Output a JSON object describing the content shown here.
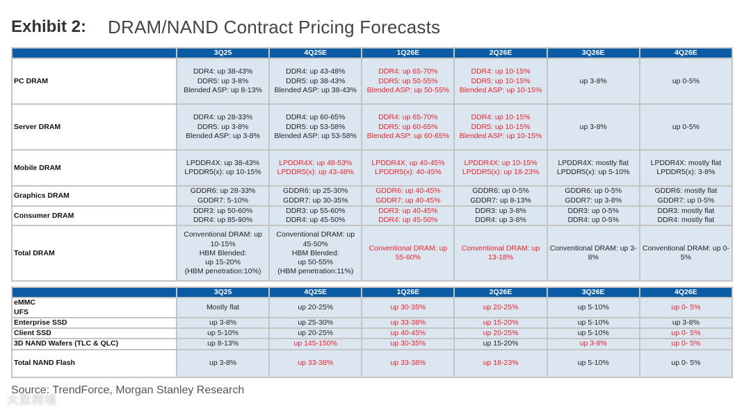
{
  "title": {
    "exhibit": "Exhibit 2:",
    "name": "DRAM/NAND Contract Pricing Forecasts"
  },
  "colors": {
    "header_bg": "#0b5ba5",
    "cell_bg": "#dce6f1",
    "highlight": "#e8232b"
  },
  "dram": {
    "columns": [
      "3Q25",
      "4Q25E",
      "1Q26E",
      "2Q26E",
      "3Q26E",
      "4Q26E"
    ],
    "rows": [
      {
        "label": "PC DRAM",
        "cells": [
          {
            "hl": false,
            "lines": [
              "DDR4: up 38-43%",
              "DDR5: up 3-8%",
              "Blended ASP: up 8-13%"
            ]
          },
          {
            "hl": false,
            "lines": [
              "DDR4: up 43-48%",
              "DDR5: up 38-43%",
              "Blended ASP: up 38-43%"
            ]
          },
          {
            "hl": true,
            "lines": [
              "DDR4: up 65-70%",
              "DDR5: up 50-55%",
              "Blended ASP: up 50-55%"
            ]
          },
          {
            "hl": true,
            "lines": [
              "DDR4: up 10-15%",
              "DDR5: up 10-15%",
              "Blended ASP: up 10-15%"
            ]
          },
          {
            "hl": false,
            "lines": [
              "up 3-8%"
            ]
          },
          {
            "hl": false,
            "lines": [
              "up 0-5%"
            ]
          }
        ]
      },
      {
        "label": "Server DRAM",
        "cells": [
          {
            "hl": false,
            "lines": [
              "DDR4: up 28-33%",
              "DDR5: up 3-8%",
              "Blended ASP: up 3-8%"
            ]
          },
          {
            "hl": false,
            "lines": [
              "DDR4: up 60-65%",
              "DDR5: up 53-58%",
              "Blended ASP: up 53-58%"
            ]
          },
          {
            "hl": true,
            "lines": [
              "DDR4: up 65-70%",
              "DDR5: up 60-65%",
              "Blended ASP: up 60-65%"
            ]
          },
          {
            "hl": true,
            "lines": [
              "DDR4: up 10-15%",
              "DDR5: up 10-15%",
              "Blended ASP: up 10-15%"
            ]
          },
          {
            "hl": false,
            "lines": [
              "up 3-8%"
            ]
          },
          {
            "hl": false,
            "lines": [
              "up 0-5%"
            ]
          }
        ]
      },
      {
        "label": "Mobile DRAM",
        "cells": [
          {
            "hl": false,
            "lines": [
              "LPDDR4X: up 38-43%",
              "LPDDR5(x): up 10-15%"
            ]
          },
          {
            "hl": true,
            "lines": [
              "LPDDR4X: up 48-53%",
              "LPDDR5(x): up 43-48%"
            ]
          },
          {
            "hl": true,
            "lines": [
              "LPDDR4X: up 40-45%",
              "LPDDR5(x): 40-45%"
            ]
          },
          {
            "hl": true,
            "lines": [
              "LPDDR4X: up 10-15%",
              "LPDDR5(x): up 18-23%"
            ]
          },
          {
            "hl": false,
            "lines": [
              "LPDDR4X: mostly flat",
              "LPDDR5(x): up 5-10%"
            ]
          },
          {
            "hl": false,
            "lines": [
              "LPDDR4X: mostly flat",
              "LPDDR5(x): 3-8%"
            ]
          }
        ]
      },
      {
        "label": "Graphics DRAM",
        "cells": [
          {
            "hl": false,
            "lines": [
              "GDDR6: up 28-33%",
              "GDDR7: 5-10%"
            ]
          },
          {
            "hl": false,
            "lines": [
              "GDDR6: up 25-30%",
              "GDDR7: up 30-35%"
            ]
          },
          {
            "hl": true,
            "lines": [
              "GDDR6: up 40-45%",
              "GDDR7: up 40-45%"
            ]
          },
          {
            "hl": false,
            "lines": [
              "GDDR6: up 0-5%",
              "GDDR7: up 8-13%"
            ]
          },
          {
            "hl": false,
            "lines": [
              "GDDR6: up 0-5%",
              "GDDR7: up 3-8%"
            ]
          },
          {
            "hl": false,
            "lines": [
              "GDDR6: mostly flat",
              "GDDR7: up 0-5%"
            ]
          }
        ]
      },
      {
        "label": "Consumer DRAM",
        "cells": [
          {
            "hl": false,
            "lines": [
              "DDR3: up 50-60%",
              "DDR4: up 85-90%"
            ]
          },
          {
            "hl": false,
            "lines": [
              "DDR3: up 55-60%",
              "DDR4: up 45-50%"
            ]
          },
          {
            "hl": true,
            "lines": [
              "DDR3: up 40-45%",
              "DDR4: up 45-50%"
            ]
          },
          {
            "hl": false,
            "lines": [
              "DDR3: up 3-8%",
              "DDR4: up 3-8%"
            ]
          },
          {
            "hl": false,
            "lines": [
              "DDR3: up 0-5%",
              "DDR4: up 0-5%"
            ]
          },
          {
            "hl": false,
            "lines": [
              "DDR3: mostly flat",
              "DDR4: mostly flat"
            ]
          }
        ]
      },
      {
        "label": "Total DRAM",
        "cells": [
          {
            "hl": false,
            "lines": [
              "Conventional DRAM: up",
              "10-15%",
              "HBM Blended:",
              "up 15-20%",
              "(HBM penetration:10%)"
            ]
          },
          {
            "hl": false,
            "lines": [
              "Conventional DRAM: up",
              "45-50%",
              "HBM Blended:",
              "up 50-55%",
              "(HBM penetration:11%)"
            ]
          },
          {
            "hl": true,
            "lines": [
              "Conventional DRAM: up",
              "55-60%"
            ]
          },
          {
            "hl": true,
            "lines": [
              "Conventional DRAM: up",
              "13-18%"
            ]
          },
          {
            "hl": false,
            "lines": [
              "Conventional DRAM: up 3-",
              "8%"
            ]
          },
          {
            "hl": false,
            "lines": [
              "Conventional DRAM: up 0-",
              "5%"
            ]
          }
        ]
      }
    ]
  },
  "nand": {
    "columns": [
      "3Q25",
      "4Q25E",
      "1Q26E",
      "2Q26E",
      "3Q26E",
      "4Q26E"
    ],
    "rows": [
      {
        "label": [
          "eMMC",
          "UFS"
        ],
        "cells": [
          {
            "hl": false,
            "lines": [
              "Mostly flat"
            ]
          },
          {
            "hl": false,
            "lines": [
              "up 20-25%"
            ]
          },
          {
            "hl": true,
            "lines": [
              "up 30-35%"
            ]
          },
          {
            "hl": true,
            "lines": [
              "up 20-25%"
            ]
          },
          {
            "hl": false,
            "lines": [
              "up 5-10%"
            ]
          },
          {
            "hl": true,
            "lines": [
              "up 0- 5%"
            ]
          }
        ]
      },
      {
        "label": [
          "Enterprise SSD"
        ],
        "cells": [
          {
            "hl": false,
            "lines": [
              "up 3-8%"
            ]
          },
          {
            "hl": false,
            "lines": [
              "up 25-30%"
            ]
          },
          {
            "hl": true,
            "lines": [
              "up 33-38%"
            ]
          },
          {
            "hl": true,
            "lines": [
              "up 15-20%"
            ]
          },
          {
            "hl": false,
            "lines": [
              "up 5-10%"
            ]
          },
          {
            "hl": false,
            "lines": [
              "up 3-8%"
            ]
          }
        ]
      },
      {
        "label": [
          "Client SSD"
        ],
        "cells": [
          {
            "hl": false,
            "lines": [
              "up 5-10%"
            ]
          },
          {
            "hl": false,
            "lines": [
              "up 20-25%"
            ]
          },
          {
            "hl": true,
            "lines": [
              "up 40-45%"
            ]
          },
          {
            "hl": true,
            "lines": [
              "up 20-25%"
            ]
          },
          {
            "hl": false,
            "lines": [
              "up 5-10%"
            ]
          },
          {
            "hl": true,
            "lines": [
              "up 0- 5%"
            ]
          }
        ]
      },
      {
        "label": [
          "3D NAND Wafers (TLC & QLC)"
        ],
        "cells": [
          {
            "hl": false,
            "lines": [
              "up 8-13%"
            ]
          },
          {
            "hl": true,
            "lines": [
              "up 145-150%"
            ]
          },
          {
            "hl": true,
            "lines": [
              "up 30-35%"
            ]
          },
          {
            "hl": false,
            "lines": [
              "up 15-20%"
            ]
          },
          {
            "hl": true,
            "lines": [
              "up 3-8%"
            ]
          },
          {
            "hl": true,
            "lines": [
              "up 0- 5%"
            ]
          }
        ]
      },
      {
        "label": [
          "Total NAND Flash"
        ],
        "cells": [
          {
            "hl": false,
            "lines": [
              "up 3-8%"
            ]
          },
          {
            "hl": true,
            "lines": [
              "up 33-38%"
            ]
          },
          {
            "hl": true,
            "lines": [
              "up 33-38%"
            ]
          },
          {
            "hl": true,
            "lines": [
              "up 18-23%"
            ]
          },
          {
            "hl": false,
            "lines": [
              "up 5-10%"
            ]
          },
          {
            "hl": false,
            "lines": [
              "up 0- 5%"
            ]
          }
        ]
      }
    ]
  },
  "source": "Source: TrendForce, Morgan Stanley Research",
  "watermark": "大数跨境"
}
